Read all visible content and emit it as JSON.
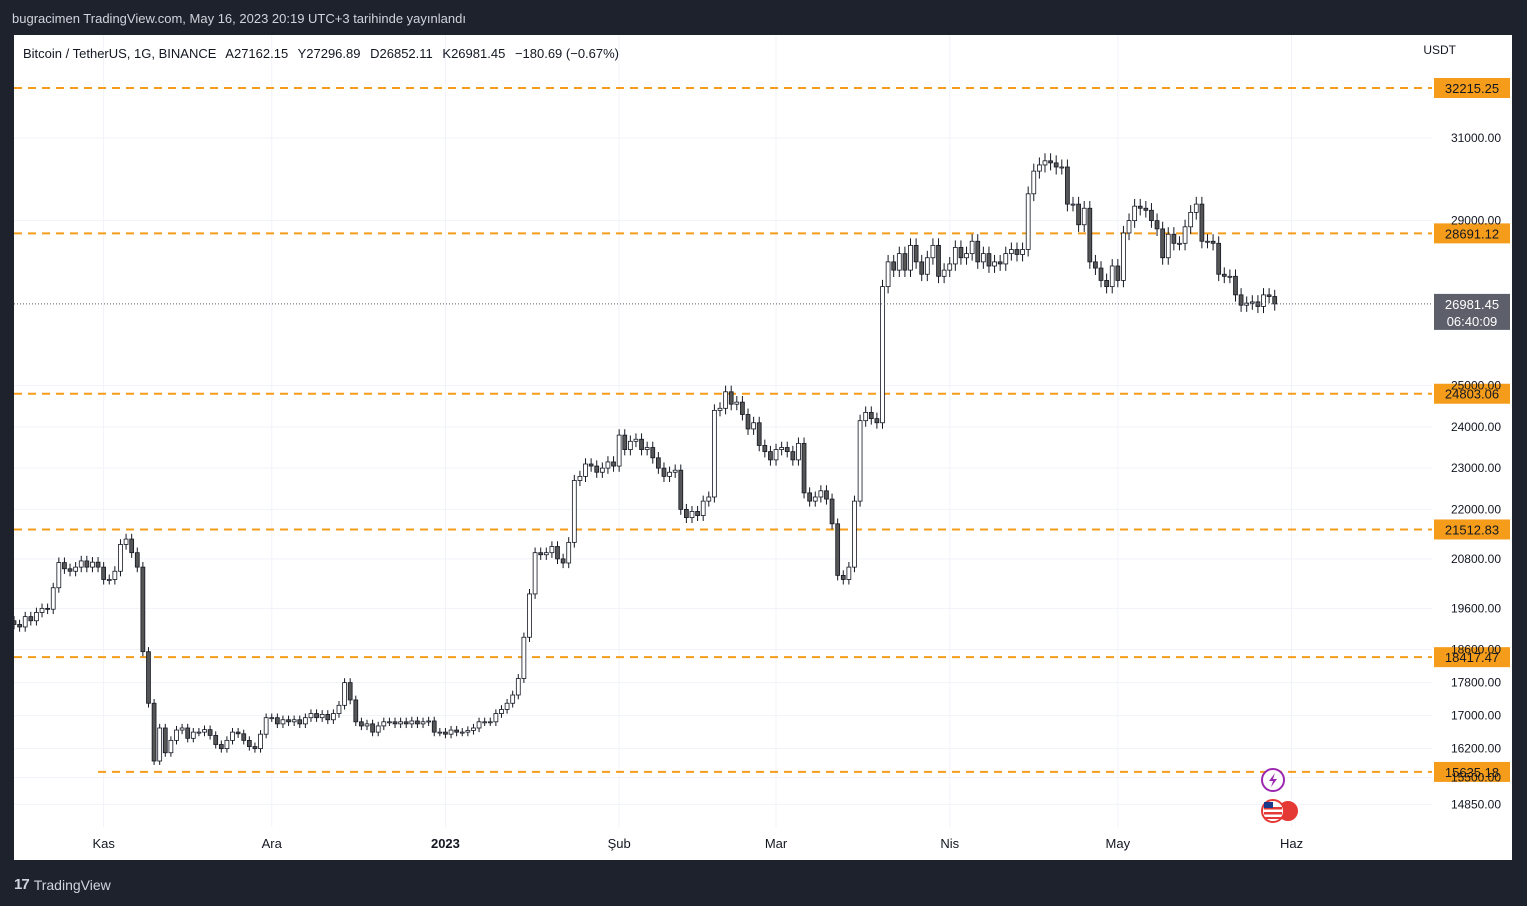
{
  "publish_line": "bugracimen TradingView.com, May 16, 2023 20:19 UTC+3 tarihinde yayınlandı",
  "symbol": {
    "name": "Bitcoin / TetherUS, 1G, BINANCE",
    "open": "A27162.15",
    "high": "Y27296.89",
    "low": "D26852.11",
    "close": "K26981.45",
    "change": "−180.69 (−0.67%)"
  },
  "currency": "USDT",
  "footer": {
    "brand": "TradingView",
    "logo": "tradingview-logo-icon"
  },
  "colors": {
    "level": "#f59d1a",
    "candle_up": "#ffffff",
    "candle_down": "#555555",
    "last_price": "#5d606b"
  },
  "icons": [
    "lightning-icon",
    "us-flag-icon"
  ],
  "chart_data": {
    "type": "candlestick",
    "title": "Bitcoin / TetherUS, 1G, BINANCE",
    "ylabel": "USDT",
    "ylim": [
      14300,
      33500
    ],
    "y_ticks": [
      "31000.00",
      "29000.00",
      "25000.00",
      "24000.00",
      "23000.00",
      "22000.00",
      "20800.00",
      "19600.00",
      "18600.00",
      "17800.00",
      "17000.00",
      "16200.00",
      "15500.00",
      "14850.00"
    ],
    "x_ticks": [
      "Kas",
      "Ara",
      "2023",
      "Şub",
      "Mar",
      "Nis",
      "May",
      "Haz"
    ],
    "x_range": [
      "2022-10-16",
      "2023-06-25"
    ],
    "first_date": "2022-10-16",
    "horizontal_levels": [
      {
        "label": "32215.25",
        "value": 32215.25,
        "start": "2022-10-16"
      },
      {
        "label": "28691.12",
        "value": 28691.12,
        "start": "2022-10-16"
      },
      {
        "label": "24803.06",
        "value": 24803.06,
        "start": "2022-10-16"
      },
      {
        "label": "21512.83",
        "value": 21512.83,
        "start": "2022-10-16"
      },
      {
        "label": "18417.47",
        "value": 18417.47,
        "start": "2022-10-16"
      },
      {
        "label": "15635.18",
        "value": 15635.18,
        "start": "2022-10-31"
      }
    ],
    "last_price": {
      "label": "26981.45",
      "value": 26981.45,
      "countdown": "06:40:09"
    },
    "close": [
      19210,
      19150,
      19400,
      19300,
      19500,
      19600,
      19580,
      20100,
      20710,
      20560,
      20500,
      20600,
      20750,
      20600,
      20720,
      20600,
      20300,
      20300,
      20500,
      21150,
      21280,
      20950,
      20600,
      18550,
      17300,
      15900,
      16700,
      16100,
      16400,
      16650,
      16700,
      16450,
      16600,
      16600,
      16660,
      16520,
      16300,
      16200,
      16400,
      16600,
      16560,
      16400,
      16250,
      16200,
      16550,
      16950,
      16950,
      16800,
      16900,
      16850,
      16900,
      16800,
      16950,
      17050,
      16950,
      17030,
      16900,
      17050,
      17250,
      17800,
      17380,
      16850,
      16750,
      16800,
      16600,
      16750,
      16850,
      16850,
      16800,
      16850,
      16800,
      16870,
      16800,
      16850,
      16870,
      16600,
      16600,
      16550,
      16650,
      16600,
      16600,
      16640,
      16700,
      16850,
      16850,
      16850,
      17050,
      17150,
      17300,
      17500,
      17900,
      18900,
      19950,
      20950,
      20900,
      20950,
      21100,
      20800,
      20700,
      21200,
      22700,
      22800,
      23100,
      23050,
      22900,
      23000,
      23150,
      23050,
      23800,
      23450,
      23650,
      23700,
      23450,
      23500,
      23250,
      23000,
      22800,
      22900,
      22950,
      22000,
      21800,
      21950,
      21850,
      22200,
      22300,
      24400,
      24450,
      24850,
      24550,
      24600,
      24300,
      23950,
      24100,
      23550,
      23400,
      23200,
      23450,
      23500,
      23400,
      23200,
      23600,
      22400,
      22200,
      22300,
      22450,
      22250,
      21650,
      20400,
      20300,
      20600,
      22200,
      24150,
      24350,
      24200,
      24100,
      27400,
      28000,
      27800,
      28200,
      27800,
      28400,
      28000,
      27700,
      28100,
      28400,
      27650,
      27800,
      27950,
      28350,
      28100,
      28200,
      28500,
      28000,
      28200,
      27900,
      28000,
      27950,
      28200,
      28300,
      28180,
      28300,
      29650,
      30200,
      30350,
      30450,
      30400,
      30300,
      30300,
      29400,
      29400,
      28900,
      29300,
      28000,
      27850,
      27550,
      27400,
      27900,
      27550,
      28700,
      29000,
      29350,
      29300,
      29250,
      29000,
      28800,
      28100,
      28670,
      28450,
      28450,
      28850,
      29200,
      29400,
      28500,
      28500,
      28450,
      27700,
      27650,
      27650,
      27200,
      26950,
      27000,
      27030,
      26920,
      27200,
      27160,
      26981
    ],
    "open": [
      19300,
      19210,
      19150,
      19400,
      19300,
      19500,
      19600,
      19580,
      20100,
      20710,
      20560,
      20500,
      20600,
      20750,
      20600,
      20720,
      20600,
      20300,
      20300,
      20500,
      21150,
      21280,
      20950,
      20600,
      18550,
      17300,
      15900,
      16700,
      16100,
      16400,
      16650,
      16700,
      16450,
      16600,
      16600,
      16660,
      16520,
      16300,
      16200,
      16400,
      16600,
      16560,
      16400,
      16250,
      16200,
      16550,
      16950,
      16950,
      16800,
      16900,
      16850,
      16900,
      16800,
      16950,
      17050,
      16950,
      17030,
      16900,
      17050,
      17250,
      17800,
      17380,
      16850,
      16750,
      16800,
      16600,
      16750,
      16850,
      16850,
      16800,
      16850,
      16800,
      16870,
      16800,
      16850,
      16870,
      16600,
      16600,
      16550,
      16650,
      16600,
      16600,
      16640,
      16700,
      16850,
      16850,
      16850,
      17050,
      17150,
      17300,
      17500,
      17900,
      18900,
      19950,
      20950,
      20900,
      20950,
      21100,
      20800,
      20700,
      21200,
      22700,
      22800,
      23100,
      23050,
      22900,
      23000,
      23150,
      23050,
      23800,
      23450,
      23650,
      23700,
      23450,
      23500,
      23250,
      23000,
      22800,
      22900,
      22950,
      22000,
      21800,
      21950,
      21850,
      22200,
      22300,
      24400,
      24450,
      24850,
      24550,
      24600,
      24300,
      23950,
      24100,
      23550,
      23400,
      23200,
      23450,
      23500,
      23400,
      23200,
      23600,
      22400,
      22200,
      22300,
      22450,
      22250,
      21650,
      20400,
      20300,
      20600,
      22200,
      24150,
      24350,
      24200,
      24100,
      27400,
      28000,
      27800,
      28200,
      27800,
      28400,
      28000,
      27700,
      28100,
      28400,
      27650,
      27800,
      27950,
      28350,
      28100,
      28200,
      28500,
      28000,
      28200,
      27900,
      28000,
      27950,
      28200,
      28300,
      28180,
      28300,
      29650,
      30200,
      30350,
      30450,
      30400,
      30300,
      30300,
      29400,
      29400,
      28900,
      29300,
      28000,
      27850,
      27550,
      27400,
      27900,
      27550,
      28700,
      29000,
      29350,
      29300,
      29250,
      29000,
      28800,
      28100,
      28670,
      28450,
      28450,
      28850,
      29200,
      29400,
      28500,
      28500,
      28450,
      27700,
      27650,
      27650,
      27200,
      26950,
      27000,
      27030,
      26920,
      27200,
      27160
    ]
  }
}
